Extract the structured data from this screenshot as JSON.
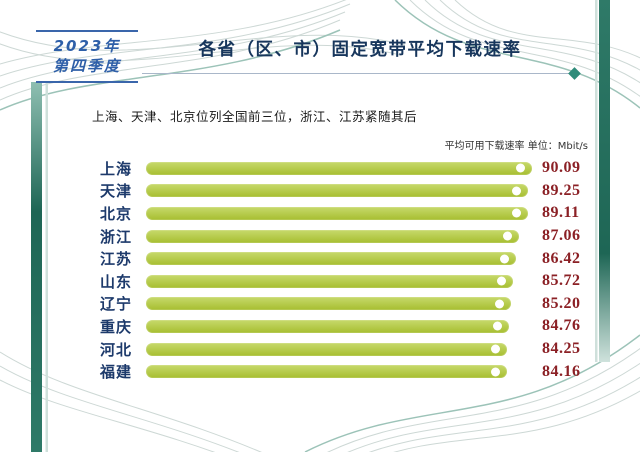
{
  "header": {
    "period_line1": "2023年",
    "period_line2": "第四季度",
    "title": "各省（区、市）固定宽带平均下载速率"
  },
  "subtitle": "上海、天津、北京位列全国前三位，浙江、江苏紧随其后",
  "unit_label": "平均可用下载速率 单位：Mbit/s",
  "chart_data": {
    "type": "bar",
    "orientation": "horizontal",
    "title": "各省（区、市）固定宽带平均下载速率",
    "subtitle": "上海、天津、北京位列全国前三位，浙江、江苏紧随其后",
    "unit": "Mbit/s",
    "categories": [
      "上海",
      "天津",
      "北京",
      "浙江",
      "江苏",
      "山东",
      "辽宁",
      "重庆",
      "河北",
      "福建"
    ],
    "values": [
      90.09,
      89.25,
      89.11,
      87.06,
      86.42,
      85.72,
      85.2,
      84.76,
      84.25,
      84.16
    ],
    "xlim": [
      0,
      90.09
    ],
    "grid": false,
    "legend": false,
    "bar_color": "#b1ca33",
    "value_color": "#8b2025"
  },
  "colors": {
    "title_navy": "#17365c",
    "period_blue": "#2e5fa8",
    "accent_teal": "#2f8c7a",
    "band_teal_dark": "#1e6655",
    "wave_gray": "#cdd8d5",
    "bar_green": "#b1ca33",
    "value_red": "#8b2025"
  }
}
